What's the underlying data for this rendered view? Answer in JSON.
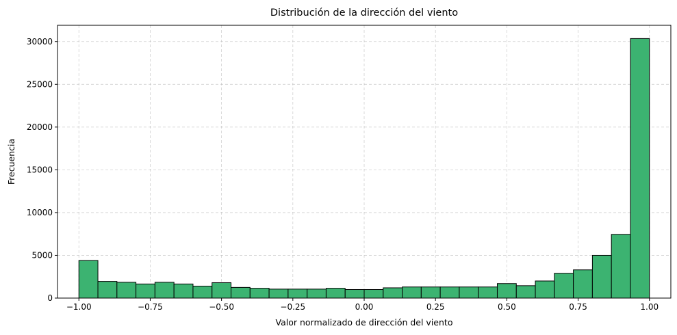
{
  "chart_data": {
    "type": "bar",
    "title": "Distribución de la dirección del viento",
    "xlabel": "Valor normalizado de dirección del viento",
    "ylabel": "Frecuencia",
    "bar_color": "#3cb371",
    "edge_color": "#000000",
    "grid": true,
    "xlim": [
      -1.075,
      1.075
    ],
    "ylim": [
      0,
      31900
    ],
    "x_ticks": [
      -1.0,
      -0.75,
      -0.5,
      -0.25,
      0.0,
      0.25,
      0.5,
      0.75,
      1.0
    ],
    "x_tick_labels": [
      "−1.00",
      "−0.75",
      "−0.50",
      "−0.25",
      "0.00",
      "0.25",
      "0.50",
      "0.75",
      "1.00"
    ],
    "y_ticks": [
      0,
      5000,
      10000,
      15000,
      20000,
      25000,
      30000
    ],
    "y_tick_labels": [
      "0",
      "5000",
      "10000",
      "15000",
      "20000",
      "25000",
      "30000"
    ],
    "bin_range": [
      -1.0,
      1.0
    ],
    "bins": 30,
    "values": [
      4400,
      1950,
      1850,
      1650,
      1850,
      1650,
      1400,
      1800,
      1250,
      1150,
      1050,
      1050,
      1050,
      1150,
      1000,
      1000,
      1200,
      1300,
      1300,
      1300,
      1300,
      1300,
      1700,
      1450,
      2000,
      2900,
      3300,
      5000,
      7450,
      30350
    ]
  }
}
